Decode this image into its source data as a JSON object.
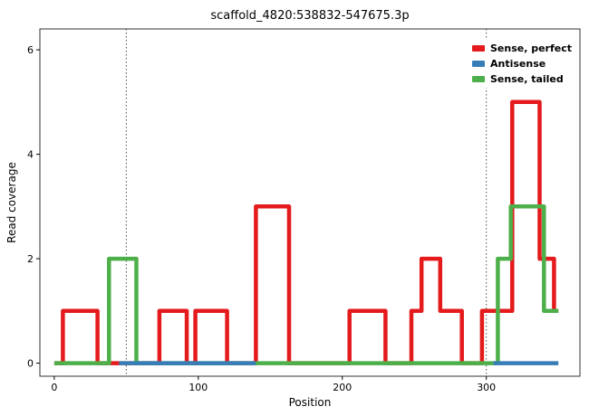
{
  "chart": {
    "title": "scaffold_4820:538832-547675.3p",
    "xlabel": "Position",
    "ylabel": "Read coverage"
  },
  "chart_data": {
    "type": "line",
    "subtype": "step-coverage",
    "title": "scaffold_4820:538832-547675.3p",
    "xlabel": "Position",
    "ylabel": "Read coverage",
    "xlim": [
      -10,
      365
    ],
    "ylim": [
      -0.25,
      6.4
    ],
    "x_ticks": [
      0,
      100,
      200,
      300
    ],
    "y_ticks": [
      0,
      2,
      4,
      6
    ],
    "grid": false,
    "legend_position": "top-right",
    "vlines": [
      50,
      300
    ],
    "vline_style": "dotted",
    "vline_color": "#4d4d4d",
    "panel_border_color": "#333333",
    "line_width": 4.5,
    "draw_order": [
      0,
      2,
      1
    ],
    "series": [
      {
        "name": "Sense, perfect",
        "color": "#e41a1c",
        "paths": [
          [
            [
              0,
              0
            ],
            [
              6,
              0
            ],
            [
              6,
              1
            ],
            [
              30,
              1
            ],
            [
              30,
              0
            ],
            [
              73,
              0
            ],
            [
              73,
              1
            ],
            [
              92,
              1
            ],
            [
              92,
              0
            ],
            [
              98,
              0
            ],
            [
              98,
              1
            ],
            [
              120,
              1
            ],
            [
              120,
              0
            ],
            [
              140,
              0
            ],
            [
              140,
              3
            ],
            [
              163,
              3
            ],
            [
              163,
              0
            ],
            [
              205,
              0
            ],
            [
              205,
              1
            ],
            [
              230,
              1
            ],
            [
              230,
              0
            ],
            [
              248,
              0
            ],
            [
              248,
              1
            ],
            [
              255,
              1
            ],
            [
              255,
              2
            ],
            [
              268,
              2
            ],
            [
              268,
              1
            ],
            [
              283,
              1
            ],
            [
              283,
              0
            ],
            [
              297,
              0
            ],
            [
              297,
              1
            ],
            [
              318,
              1
            ],
            [
              318,
              5
            ],
            [
              337,
              5
            ],
            [
              337,
              2
            ],
            [
              347,
              2
            ],
            [
              347,
              1
            ],
            [
              350,
              1
            ]
          ]
        ]
      },
      {
        "name": "Antisense",
        "color": "#377eb8",
        "paths": [
          [
            [
              45,
              0
            ],
            [
              140,
              0
            ]
          ],
          [
            [
              305,
              0
            ],
            [
              350,
              0
            ]
          ]
        ]
      },
      {
        "name": "Sense, tailed",
        "color": "#4daf4a",
        "paths": [
          [
            [
              0,
              0
            ],
            [
              38,
              0
            ],
            [
              38,
              2
            ],
            [
              57,
              2
            ],
            [
              57,
              0
            ],
            [
              308,
              0
            ],
            [
              308,
              2
            ],
            [
              317,
              2
            ],
            [
              317,
              3
            ],
            [
              340,
              3
            ],
            [
              340,
              1
            ],
            [
              350,
              1
            ]
          ]
        ]
      }
    ]
  }
}
